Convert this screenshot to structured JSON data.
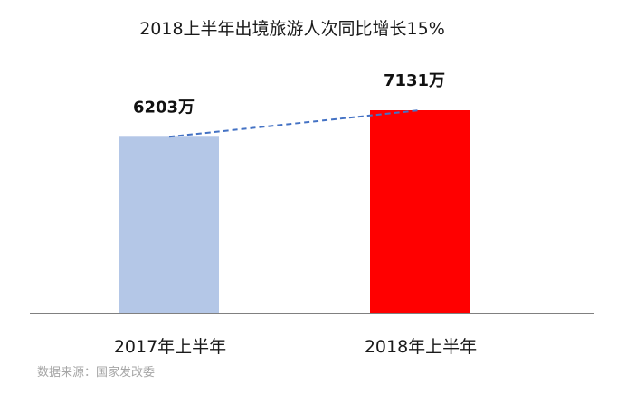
{
  "chart_data": {
    "type": "bar",
    "title": "2018上半年出境旅游人次同比增长15%",
    "categories": [
      "2017年上半年",
      "2018年上半年"
    ],
    "values": [
      6203,
      7131
    ],
    "value_labels": [
      "6203万",
      "7131万"
    ],
    "bar_colors": [
      "#b4c7e7",
      "#ff0000"
    ],
    "trend_line": {
      "style": "dashed",
      "color": "#4472c4"
    },
    "ylim": [
      0,
      7131
    ],
    "grid": false,
    "legend": "none",
    "source": "数据来源：国家发改委"
  }
}
